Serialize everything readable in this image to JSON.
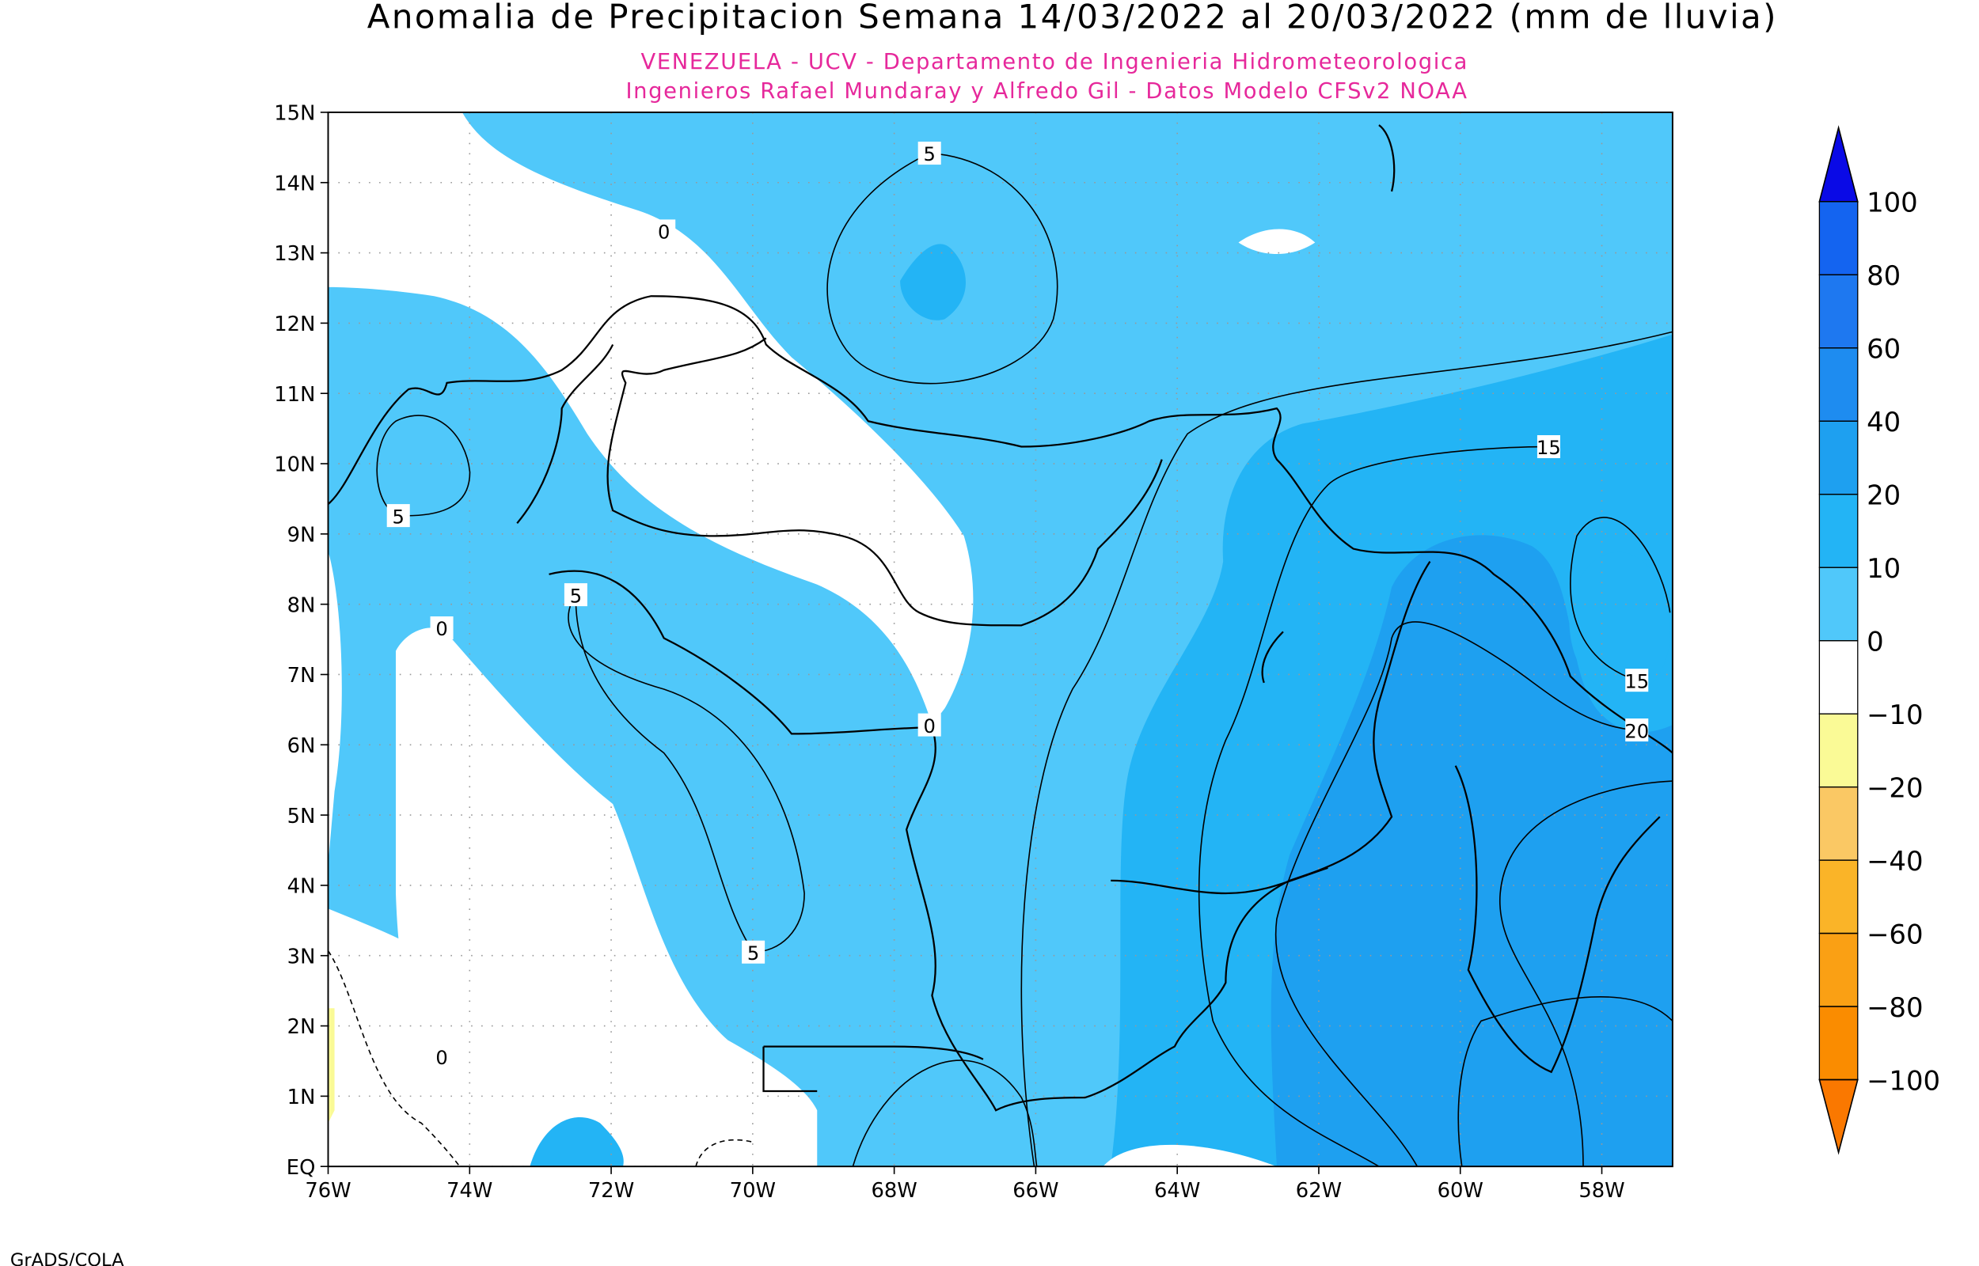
{
  "title": "Anomalia de Precipitacion Semana 14/03/2022 al 20/03/2022 (mm de lluvia)",
  "subtitle_lines": [
    "VENEZUELA - UCV - Departamento de Ingenieria Hidrometeorologica",
    "Ingenieros Rafael Mundaray y Alfredo Gil - Datos Modelo CFSv2 NOAA"
  ],
  "map": {
    "lat_ticks": [
      "15N",
      "14N",
      "13N",
      "12N",
      "11N",
      "10N",
      "9N",
      "8N",
      "7N",
      "6N",
      "5N",
      "4N",
      "3N",
      "2N",
      "1N",
      "EQ"
    ],
    "lon_ticks": [
      "76W",
      "74W",
      "72W",
      "70W",
      "68W",
      "66W",
      "64W",
      "62W",
      "60W",
      "58W"
    ],
    "contour_labels": [
      "5",
      "0",
      "5",
      "15",
      "5",
      "0",
      "15",
      "0",
      "20",
      "5",
      "0"
    ]
  },
  "colorbar": {
    "levels": [
      100,
      80,
      60,
      40,
      20,
      10,
      0,
      {
        "value": -10,
        "label": "−10"
      },
      {
        "value": -20,
        "label": "−20"
      },
      {
        "value": -40,
        "label": "−40"
      },
      {
        "value": -60,
        "label": "−60"
      },
      {
        "value": -80,
        "label": "−80"
      },
      {
        "value": -100,
        "label": "−100"
      }
    ],
    "colors": [
      "#0a0ae6",
      "#1464f0",
      "#1e78f0",
      "#1e8cf0",
      "#1ea0f0",
      "#23b4f5",
      "#50c8fa",
      "#ffffff",
      "#fafa96",
      "#fac864",
      "#fab428",
      "#faa014",
      "#fa8c00",
      "#fa7800"
    ]
  },
  "footer": "GrADS/COLA"
}
